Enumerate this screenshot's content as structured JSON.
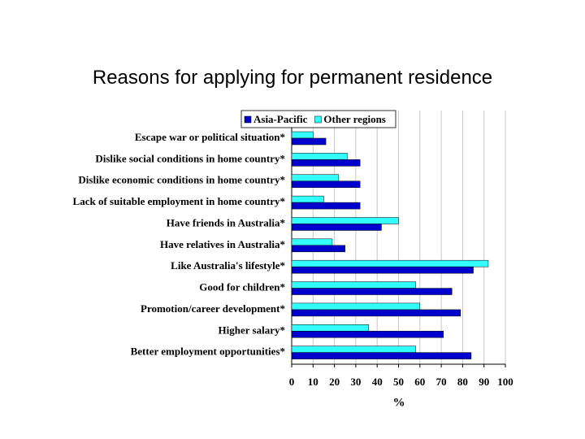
{
  "chart_data": {
    "type": "bar",
    "orientation": "horizontal",
    "title": "Reasons for applying for permanent residence",
    "x_label": "%",
    "categories": [
      "Escape war or political situation*",
      "Dislike social conditions in home country*",
      "Dislike economic conditions in home country*",
      "Lack of suitable employment in home country*",
      "Have friends in Australia*",
      "Have relatives in Australia*",
      "Like Australia's lifestyle*",
      "Good for children*",
      "Promotion/career development*",
      "Higher salary*",
      "Better employment opportunities*"
    ],
    "series": [
      {
        "name": "Asia-Pacific",
        "color": "#0000cc",
        "values": [
          16,
          32,
          32,
          32,
          42,
          25,
          85,
          75,
          79,
          71,
          84
        ]
      },
      {
        "name": "Other regions",
        "color": "#33ffff",
        "values": [
          10,
          26,
          22,
          15,
          50,
          19,
          92,
          58,
          60,
          36,
          58
        ]
      }
    ],
    "xlim": [
      0,
      100
    ],
    "xticks": [
      0,
      10,
      20,
      30,
      40,
      50,
      60,
      70,
      80,
      90,
      100
    ],
    "grid": true,
    "legend": "top"
  }
}
